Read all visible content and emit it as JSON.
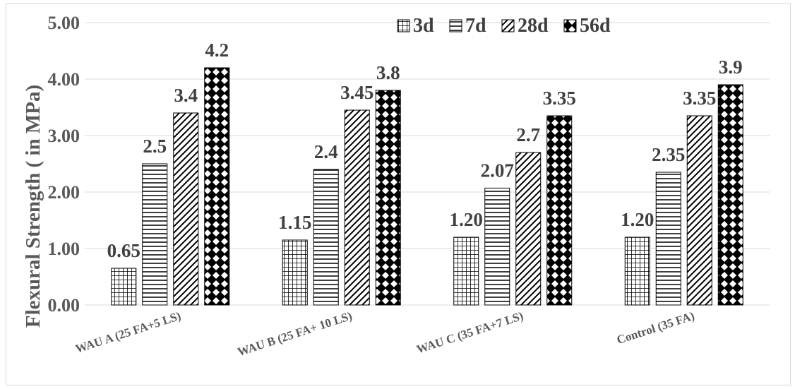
{
  "chart_data": {
    "type": "bar",
    "title": "",
    "xlabel": "",
    "ylabel": "Flexural Strength ( in MPa)",
    "ylim": [
      0,
      5
    ],
    "yticks": [
      "0.00",
      "1.00",
      "2.00",
      "3.00",
      "4.00",
      "5.00"
    ],
    "grid": true,
    "legend_position": "top-right",
    "categories": [
      "WAU A (25 FA+5 LS)",
      "WAU B (25 FA+ 10 LS)",
      "WAU C (35 FA+7 LS)",
      "Control (35 FA)"
    ],
    "series": [
      {
        "name": "3d",
        "pattern": "grid",
        "values": [
          0.65,
          1.15,
          1.2,
          1.2
        ],
        "labels": [
          "0.65",
          "1.15",
          "1.20",
          "1.20"
        ]
      },
      {
        "name": "7d",
        "pattern": "horizontal",
        "values": [
          2.5,
          2.4,
          2.07,
          2.35
        ],
        "labels": [
          "2.5",
          "2.4",
          "2.07",
          "2.35"
        ]
      },
      {
        "name": "28d",
        "pattern": "diagonal",
        "values": [
          3.4,
          3.45,
          2.7,
          3.35
        ],
        "labels": [
          "3.4",
          "3.45",
          "2.7",
          "3.35"
        ]
      },
      {
        "name": "56d",
        "pattern": "diamond",
        "values": [
          4.2,
          3.8,
          3.35,
          3.9
        ],
        "labels": [
          "4.2",
          "3.8",
          "3.35",
          "3.9"
        ]
      }
    ],
    "colors": {
      "axis_text": "#595959",
      "label_text": "#404040",
      "grid": "#d9d9d9",
      "bar_stroke": "#000000"
    }
  }
}
